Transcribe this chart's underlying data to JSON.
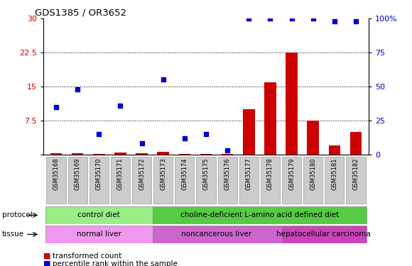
{
  "title": "GDS1385 / OR3652",
  "samples": [
    "GSM35168",
    "GSM35169",
    "GSM35170",
    "GSM35171",
    "GSM35172",
    "GSM35173",
    "GSM35174",
    "GSM35175",
    "GSM35176",
    "GSM35177",
    "GSM35178",
    "GSM35179",
    "GSM35180",
    "GSM35181",
    "GSM35182"
  ],
  "transformed_count": [
    0.2,
    0.3,
    0.15,
    0.4,
    0.2,
    0.5,
    0.1,
    0.15,
    0.1,
    10.0,
    16.0,
    22.5,
    7.5,
    2.0,
    5.0
  ],
  "percentile_rank_pct": [
    35,
    48,
    15,
    36,
    8,
    55,
    12,
    15,
    3,
    100,
    100,
    100,
    100,
    98,
    98
  ],
  "left_yaxis_ticks": [
    0,
    7.5,
    15,
    22.5,
    30
  ],
  "left_yaxis_color": "#cc0000",
  "right_yaxis_ticks": [
    0,
    25,
    50,
    75,
    100
  ],
  "right_yaxis_color": "#0000cc",
  "bar_color": "#cc0000",
  "dot_color": "#0000cc",
  "protocol_groups": [
    {
      "label": "control diet",
      "start": 0,
      "end": 4,
      "color": "#99ee88"
    },
    {
      "label": "choline-deficient L-amino acid defined diet",
      "start": 5,
      "end": 14,
      "color": "#55cc44"
    }
  ],
  "tissue_groups": [
    {
      "label": "normal liver",
      "start": 0,
      "end": 4,
      "color": "#ee99ee"
    },
    {
      "label": "noncancerous liver",
      "start": 5,
      "end": 10,
      "color": "#cc66cc"
    },
    {
      "label": "hepatocellular carcinoma",
      "start": 11,
      "end": 14,
      "color": "#cc44bb"
    }
  ],
  "legend_items": [
    {
      "color": "#cc0000",
      "label": "transformed count"
    },
    {
      "color": "#0000cc",
      "label": "percentile rank within the sample"
    }
  ],
  "dotted_lines": [
    7.5,
    15.0,
    22.5
  ],
  "tick_bg": "#cccccc"
}
